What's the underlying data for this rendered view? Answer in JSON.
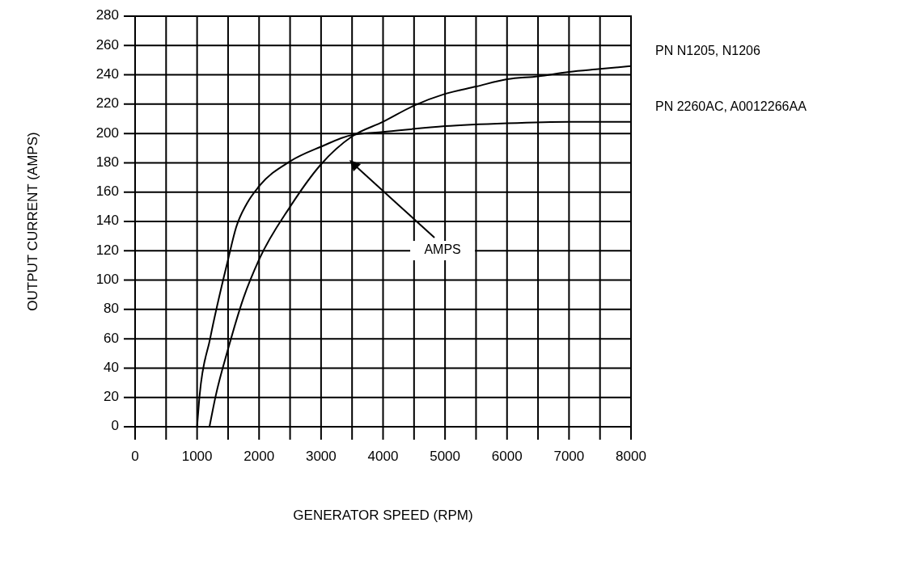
{
  "chart_data": {
    "type": "line",
    "xlabel": "GENERATOR SPEED (RPM)",
    "ylabel": "OUTPUT CURRENT (AMPS)",
    "xlim": [
      0,
      8000
    ],
    "ylim": [
      0,
      280
    ],
    "xticks": [
      0,
      {
        "value": 500,
        "label": null
      },
      1000,
      {
        "value": 1500,
        "label": null
      },
      2000,
      {
        "value": 2500,
        "label": null
      },
      3000,
      {
        "value": 3500,
        "label": null
      },
      4000,
      {
        "value": 4500,
        "label": null
      },
      5000,
      {
        "value": 5500,
        "label": null
      },
      6000,
      {
        "value": 6500,
        "label": null
      },
      7000,
      {
        "value": 7500,
        "label": null
      },
      8000
    ],
    "yticks": [
      0,
      20,
      40,
      60,
      80,
      100,
      120,
      140,
      160,
      180,
      200,
      220,
      240,
      260,
      280
    ],
    "grid": true,
    "legend": false,
    "marker": "none",
    "line_style": "solid",
    "series": [
      {
        "name": "PN N1205, N1206",
        "color": "#000000",
        "x": [
          1200,
          1300,
          1500,
          1750,
          2000,
          2500,
          3000,
          3500,
          4000,
          4500,
          5000,
          5500,
          6000,
          6500,
          7000,
          7500,
          8000
        ],
        "values": [
          0,
          21,
          53,
          88,
          114,
          150,
          179,
          198,
          208,
          219,
          227,
          232,
          237,
          239,
          242,
          244,
          246
        ]
      },
      {
        "name": "PN 2260AC, A0012266AA",
        "color": "#000000",
        "x": [
          1000,
          1040,
          1210,
          1500,
          1630,
          1800,
          2000,
          2500,
          3000,
          3500,
          4000,
          5000,
          6000,
          7000,
          8000
        ],
        "values": [
          0,
          21,
          60,
          114,
          136,
          152,
          164,
          181,
          191,
          199,
          201,
          205,
          207,
          208,
          208
        ]
      }
    ],
    "annotations": [
      "AMPS"
    ]
  }
}
